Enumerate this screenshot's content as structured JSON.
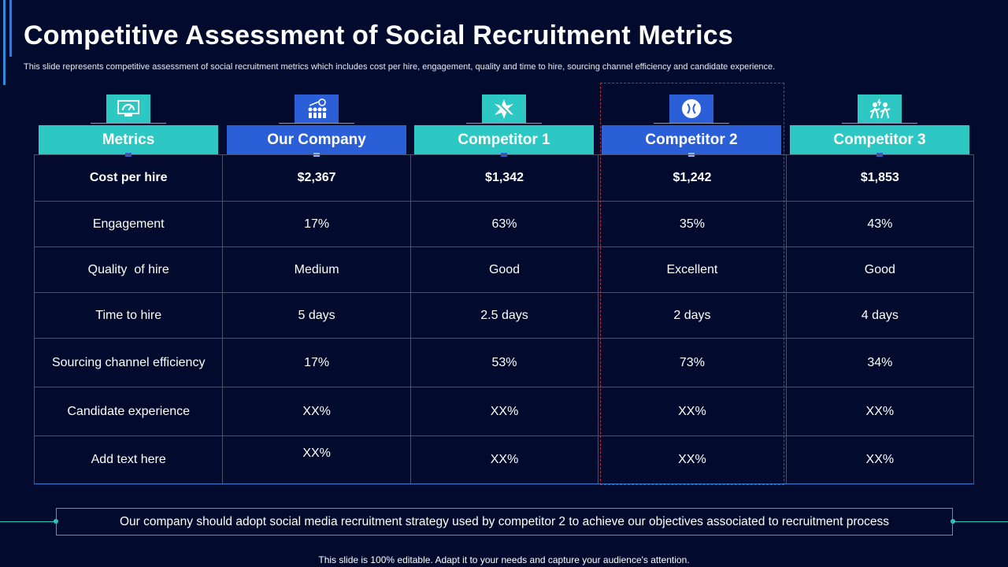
{
  "title": "Competitive Assessment of Social Recruitment Metrics",
  "subtitle": "This slide represents competitive assessment of social recruitment metrics which includes cost per hire, engagement, quality and time to hire, sourcing channel efficiency and candidate experience.",
  "columns": [
    {
      "label": "Metrics",
      "icon": "monitor-chart-icon",
      "color": "#2ec8c4"
    },
    {
      "label": "Our Company",
      "icon": "team-growth-icon",
      "color": "#2b5fd8"
    },
    {
      "label": "Competitor 1",
      "icon": "star-burst-icon",
      "color": "#2ec8c4"
    },
    {
      "label": "Competitor 2",
      "icon": "badge-circle-icon",
      "color": "#2b5fd8"
    },
    {
      "label": "Competitor 3",
      "icon": "people-activity-icon",
      "color": "#2ec8c4"
    }
  ],
  "rows": [
    [
      "Cost per hire",
      "$2,367",
      "$1,342",
      "$1,242",
      "$1,853"
    ],
    [
      "Engagement",
      "17%",
      "63%",
      "35%",
      "43%"
    ],
    [
      "Quality  of hire",
      "Medium",
      "Good",
      "Excellent",
      "Good"
    ],
    [
      "Time to hire",
      "5 days",
      "2.5 days",
      "2 days",
      "4 days"
    ],
    [
      "Sourcing channel efficiency",
      "17%",
      "53%",
      "73%",
      "34%"
    ],
    [
      "Candidate experience",
      "XX%",
      "XX%",
      "XX%",
      "XX%"
    ],
    [
      "Add text here",
      "XX%",
      "XX%",
      "XX%",
      "XX%"
    ]
  ],
  "conclusion": "Our company should adopt social media recruitment strategy used by competitor 2 to achieve our objectives associated to recruitment process",
  "footer": "This slide is 100% editable. Adapt it to your needs and capture your audience's attention.",
  "colors": {
    "background": "#020b2d",
    "teal": "#2ec8c4",
    "blue": "#2b5fd8",
    "highlight": "#c0283c"
  }
}
